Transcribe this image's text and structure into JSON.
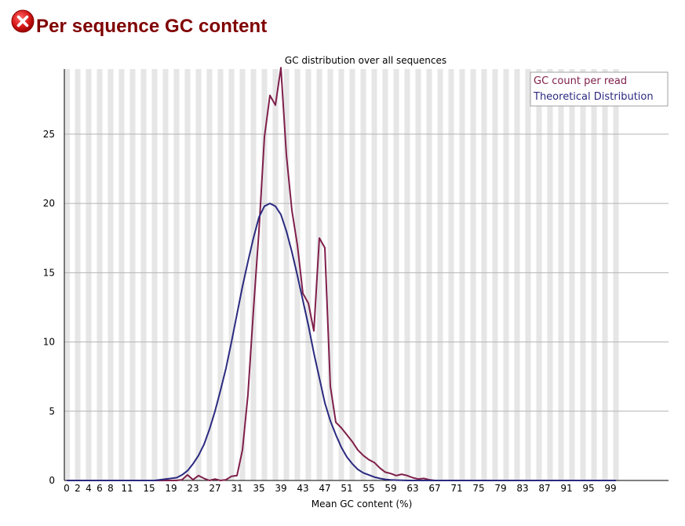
{
  "header": {
    "title": "Per sequence GC content",
    "status_icon": "error-icon",
    "status_color": "#cc0000"
  },
  "chart_data": {
    "type": "line",
    "title": "GC distribution over all sequences",
    "xlabel": "Mean GC content (%)",
    "ylabel": "",
    "xlim": [
      0,
      100
    ],
    "ylim": [
      0,
      29.7
    ],
    "yticks": [
      0,
      5,
      10,
      15,
      20,
      25
    ],
    "xtick_labels": [
      "0",
      "2",
      "4",
      "6",
      "8",
      "11",
      "15",
      "19",
      "23",
      "27",
      "31",
      "35",
      "39",
      "43",
      "47",
      "51",
      "55",
      "59",
      "63",
      "67",
      "71",
      "75",
      "79",
      "83",
      "87",
      "91",
      "95",
      "99"
    ],
    "grid": "horizontal",
    "banding": "alternating vertical stripes",
    "legend_position": "top-right",
    "legend": [
      "GC count per read",
      "Theoretical Distribution"
    ],
    "x": [
      0,
      1,
      2,
      3,
      4,
      5,
      6,
      7,
      8,
      9,
      10,
      11,
      12,
      13,
      14,
      15,
      16,
      17,
      18,
      19,
      20,
      21,
      22,
      23,
      24,
      25,
      26,
      27,
      28,
      29,
      30,
      31,
      32,
      33,
      34,
      35,
      36,
      37,
      38,
      39,
      40,
      41,
      42,
      43,
      44,
      45,
      46,
      47,
      48,
      49,
      50,
      51,
      52,
      53,
      54,
      55,
      56,
      57,
      58,
      59,
      60,
      61,
      62,
      63,
      64,
      65,
      66,
      67,
      68,
      69,
      70,
      71,
      72,
      73,
      74,
      75,
      76,
      77,
      78,
      79,
      80,
      81,
      82,
      83,
      84,
      85,
      86,
      87,
      88,
      89,
      90,
      91,
      92,
      93,
      94,
      95,
      96,
      97,
      98,
      99,
      100
    ],
    "series": [
      {
        "name": "GC count per read",
        "color": "#7f1f4a",
        "values": [
          0,
          0,
          0,
          0,
          0,
          0,
          0,
          0,
          0,
          0,
          0,
          0,
          0,
          0,
          0,
          0,
          0,
          0,
          0,
          0,
          0,
          0.05,
          0.4,
          0.05,
          0.35,
          0.15,
          0.0,
          0.1,
          0.0,
          0.05,
          0.3,
          0.35,
          2.2,
          6.2,
          12.3,
          18.0,
          24.8,
          27.8,
          27.1,
          29.8,
          23.5,
          19.5,
          17.0,
          13.5,
          12.8,
          10.8,
          17.5,
          16.8,
          6.8,
          4.2,
          3.8,
          3.3,
          2.8,
          2.2,
          1.8,
          1.5,
          1.3,
          0.9,
          0.6,
          0.5,
          0.35,
          0.45,
          0.35,
          0.2,
          0.1,
          0.15,
          0.05,
          0,
          0,
          0,
          0,
          0,
          0,
          0,
          0,
          0,
          0,
          0,
          0,
          0,
          0,
          0,
          0,
          0,
          0,
          0,
          0,
          0,
          0,
          0,
          0,
          0,
          0,
          0,
          0,
          0,
          0,
          0,
          0,
          0,
          0
        ]
      },
      {
        "name": "Theoretical Distribution",
        "color": "#2b2a80",
        "values": [
          0,
          0,
          0,
          0,
          0,
          0,
          0,
          0,
          0,
          0,
          0,
          0,
          0,
          0,
          0,
          0,
          0,
          0.05,
          0.1,
          0.15,
          0.2,
          0.4,
          0.7,
          1.2,
          1.8,
          2.6,
          3.7,
          5.0,
          6.5,
          8.1,
          10.0,
          12.0,
          14.0,
          15.8,
          17.5,
          19.0,
          19.8,
          20.0,
          19.8,
          19.2,
          18.0,
          16.5,
          14.8,
          13.0,
          11.2,
          9.2,
          7.4,
          5.6,
          4.3,
          3.3,
          2.4,
          1.7,
          1.2,
          0.8,
          0.55,
          0.4,
          0.25,
          0.15,
          0.08,
          0.04,
          0.02,
          0.01,
          0,
          0,
          0,
          0,
          0,
          0,
          0,
          0,
          0,
          0,
          0,
          0,
          0,
          0,
          0,
          0,
          0,
          0,
          0,
          0,
          0,
          0,
          0,
          0,
          0,
          0,
          0,
          0,
          0,
          0,
          0,
          0,
          0,
          0,
          0,
          0,
          0,
          0,
          0
        ]
      }
    ]
  }
}
